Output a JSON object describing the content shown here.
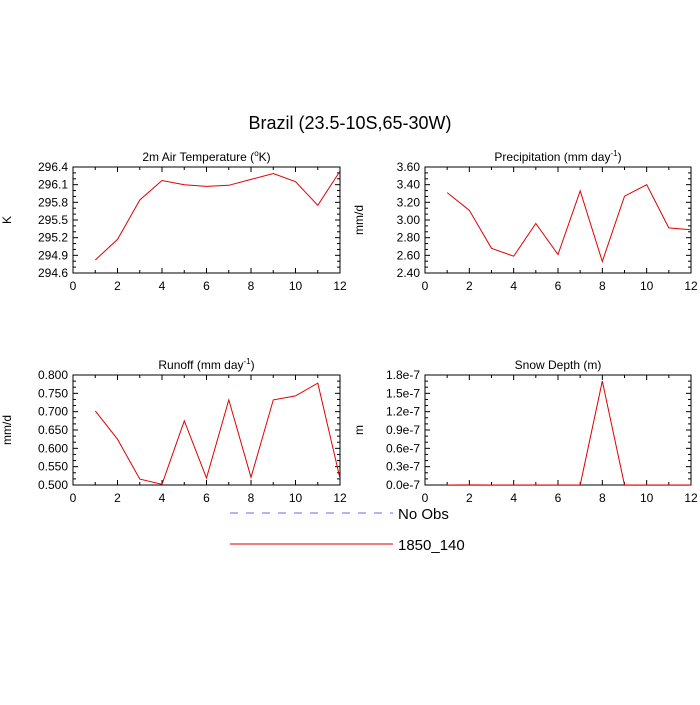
{
  "figure": {
    "title": "Brazil (23.5-10S,65-30W)"
  },
  "legend": {
    "entries": [
      {
        "label": "No Obs",
        "color": "#6a6af0",
        "style": "dashed"
      },
      {
        "label": "1850_140",
        "color": "#e00000",
        "style": "solid"
      }
    ]
  },
  "chart_data": [
    {
      "type": "line",
      "title": "2m Air Temperature (°K)",
      "title_parts": {
        "pre": "2m Air Temperature (",
        "sup": "o",
        "post": "K)"
      },
      "xlabel": "",
      "ylabel": "K",
      "xlim": [
        0,
        12
      ],
      "ylim": [
        294.6,
        296.4
      ],
      "x_ticks": [
        "0",
        "2",
        "4",
        "6",
        "8",
        "10",
        "12"
      ],
      "y_ticks": [
        "294.6",
        "294.9",
        "295.2",
        "295.5",
        "295.8",
        "296.1",
        "296.4"
      ],
      "grid": false,
      "series": [
        {
          "name": "1850_140",
          "color": "#e00000",
          "x": [
            1,
            2,
            3,
            4,
            5,
            6,
            7,
            8,
            9,
            10,
            11,
            12
          ],
          "values": [
            294.82,
            295.17,
            295.84,
            296.17,
            296.1,
            296.07,
            296.09,
            296.19,
            296.29,
            296.15,
            295.75,
            296.33
          ]
        }
      ]
    },
    {
      "type": "line",
      "title": "Precipitation (mm day-1)",
      "title_parts": {
        "pre": "Precipitation (mm day",
        "sup": "-1",
        "post": ")"
      },
      "xlabel": "",
      "ylabel": "mm/d",
      "xlim": [
        0,
        12
      ],
      "ylim": [
        2.4,
        3.6
      ],
      "x_ticks": [
        "0",
        "2",
        "4",
        "6",
        "8",
        "10",
        "12"
      ],
      "y_ticks": [
        "2.40",
        "2.60",
        "2.80",
        "3.00",
        "3.20",
        "3.40",
        "3.60"
      ],
      "grid": false,
      "series": [
        {
          "name": "1850_140",
          "color": "#e00000",
          "x": [
            1,
            2,
            3,
            4,
            5,
            6,
            7,
            8,
            9,
            10,
            11,
            12
          ],
          "values": [
            3.31,
            3.11,
            2.68,
            2.59,
            2.96,
            2.61,
            3.33,
            2.53,
            3.27,
            3.4,
            2.91,
            2.89
          ]
        }
      ]
    },
    {
      "type": "line",
      "title": "Runoff (mm day-1)",
      "title_parts": {
        "pre": "Runoff (mm day",
        "sup": "-1",
        "post": ")"
      },
      "xlabel": "",
      "ylabel": "mm/d",
      "xlim": [
        0,
        12
      ],
      "ylim": [
        0.5,
        0.8
      ],
      "x_ticks": [
        "0",
        "2",
        "4",
        "6",
        "8",
        "10",
        "12"
      ],
      "y_ticks": [
        "0.500",
        "0.550",
        "0.600",
        "0.650",
        "0.700",
        "0.750",
        "0.800"
      ],
      "grid": false,
      "series": [
        {
          "name": "1850_140",
          "color": "#e00000",
          "x": [
            1,
            2,
            3,
            4,
            5,
            6,
            7,
            8,
            9,
            10,
            11,
            12
          ],
          "values": [
            0.702,
            0.625,
            0.516,
            0.502,
            0.675,
            0.519,
            0.732,
            0.521,
            0.732,
            0.743,
            0.778,
            0.518
          ]
        }
      ]
    },
    {
      "type": "line",
      "title": "Snow Depth (m)",
      "title_parts": {
        "pre": "Snow Depth (m)",
        "sup": "",
        "post": ""
      },
      "xlabel": "",
      "ylabel": "m",
      "xlim": [
        0,
        12
      ],
      "ylim": [
        0,
        1.8e-07
      ],
      "x_ticks": [
        "0",
        "2",
        "4",
        "6",
        "8",
        "10",
        "12"
      ],
      "y_ticks": [
        "0.0e-7",
        "0.3e-7",
        "0.6e-7",
        "0.9e-7",
        "1.2e-7",
        "1.5e-7",
        "1.8e-7"
      ],
      "grid": false,
      "series": [
        {
          "name": "1850_140",
          "color": "#e00000",
          "x": [
            1,
            2,
            3,
            4,
            5,
            6,
            7,
            8,
            9,
            10,
            11,
            12
          ],
          "values": [
            0,
            2e-10,
            0,
            0,
            0,
            0,
            0,
            1.7e-07,
            0,
            0,
            0,
            0
          ]
        }
      ]
    }
  ]
}
